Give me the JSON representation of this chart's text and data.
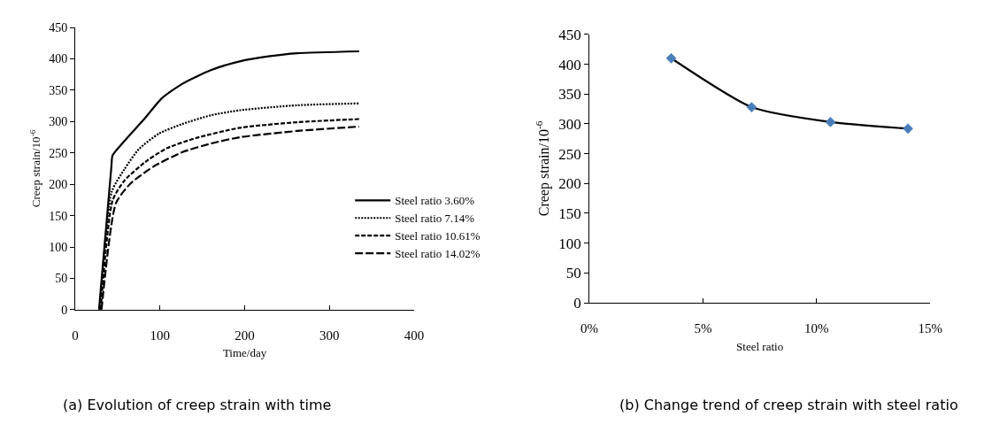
{
  "chart_data": [
    {
      "type": "line",
      "xlabel": "Time/day",
      "ylabel": "Creep strain/10$^{-6}$",
      "annotations": [
        "(a) Evolution of creep strain with time"
      ],
      "xlim": [
        0,
        400
      ],
      "xticks": [
        0,
        100,
        200,
        300,
        400
      ],
      "ylim": [
        0,
        450
      ],
      "yticks": [
        0,
        50,
        100,
        150,
        200,
        250,
        300,
        350,
        400,
        450
      ],
      "grid": false,
      "legend": "bottom right",
      "marker": "none",
      "series": [
        {
          "name": "Steel ratio 3.60%",
          "color": "#000000",
          "line_style": "solid",
          "x": [
            28,
            42.6,
            44,
            58,
            82,
            102,
            126,
            160,
            194,
            228,
            262,
            335
          ],
          "values": [
            0,
            228,
            246,
            269,
            305,
            337,
            360,
            382,
            396,
            404,
            409,
            412
          ]
        },
        {
          "name": "Steel ratio 7.14%",
          "color": "#000000",
          "line_style": "dotted",
          "x": [
            29,
            43,
            58,
            75,
            99,
            126,
            160,
            194,
            262,
            335
          ],
          "values": [
            0,
            188,
            224,
            256,
            281,
            296,
            310,
            318,
            326,
            329
          ]
        },
        {
          "name": "Steel ratio 10.61%",
          "color": "#000000",
          "line_style": "dashed",
          "x": [
            30,
            44,
            58,
            85,
            109,
            143,
            194,
            262,
            335
          ],
          "values": [
            0,
            174,
            206,
            238,
            258,
            274,
            290,
            299,
            304
          ]
        },
        {
          "name": "Steel ratio 14.02%",
          "color": "#000000",
          "line_style": "long dashed",
          "x": [
            31,
            48,
            65,
            92,
            126,
            160,
            194,
            262,
            335
          ],
          "values": [
            0,
            170,
            201,
            228,
            251,
            265,
            275,
            285,
            292
          ]
        }
      ]
    },
    {
      "type": "line",
      "xlabel": "Steel ratio",
      "ylabel": "Creep strain/10$^{-6}$",
      "annotations": [
        "(b) Change trend of creep strain with steel ratio"
      ],
      "xlim": [
        0,
        15
      ],
      "xticks": [
        {
          "value": 0,
          "label": "0%"
        },
        {
          "value": 5,
          "label": "5%"
        },
        {
          "value": 10,
          "label": "10%"
        },
        {
          "value": 15,
          "label": "15%"
        }
      ],
      "ylim": [
        0,
        450
      ],
      "yticks": [
        0,
        50,
        100,
        150,
        200,
        250,
        300,
        350,
        400,
        450
      ],
      "grid": false,
      "legend": false,
      "marker": "diamond",
      "series": [
        {
          "color": "#000000",
          "colors": [
            "#4a7ebb",
            "#4a7ebb",
            "#4a7ebb",
            "#4a7ebb"
          ],
          "line_style": "solid",
          "x": [
            3.6,
            7.14,
            10.61,
            14.02
          ],
          "values": [
            410,
            328,
            303,
            292
          ]
        }
      ]
    }
  ]
}
